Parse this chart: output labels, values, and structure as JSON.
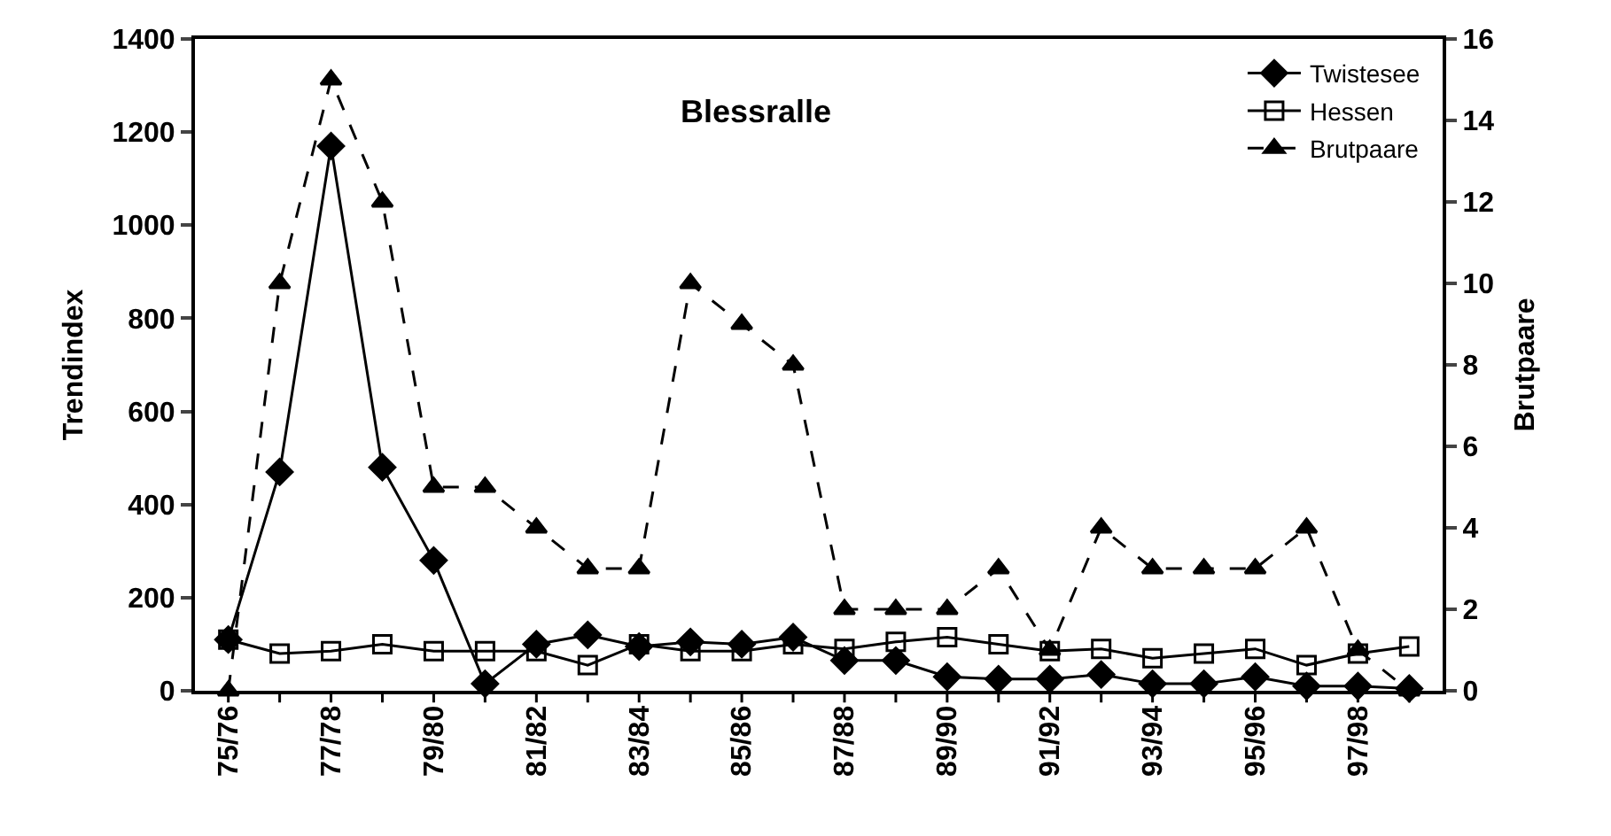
{
  "chart_data": {
    "type": "line",
    "title": "Blessralle",
    "ylabel": "Trendindex",
    "y2label": "Brutpaare",
    "categories": [
      "75/76",
      null,
      "77/78",
      null,
      "79/80",
      null,
      "81/82",
      null,
      "83/84",
      null,
      "85/86",
      null,
      "87/88",
      null,
      "89/90",
      null,
      "91/92",
      null,
      "93/94",
      null,
      "95/96",
      null,
      "97/98",
      null
    ],
    "series": [
      {
        "name": "Twistesee",
        "color": "#000000",
        "marker": "diamond",
        "line_style": "solid",
        "values": [
          110,
          470,
          1170,
          480,
          280,
          15,
          100,
          120,
          95,
          105,
          100,
          115,
          65,
          65,
          30,
          25,
          25,
          35,
          15,
          15,
          30,
          10,
          10,
          5
        ]
      },
      {
        "name": "Hessen",
        "color": "#000000",
        "marker": "square",
        "line_style": "solid",
        "values": [
          110,
          80,
          85,
          100,
          85,
          85,
          85,
          55,
          100,
          85,
          85,
          100,
          90,
          105,
          115,
          100,
          85,
          90,
          70,
          80,
          90,
          55,
          80,
          95
        ]
      },
      {
        "name": "Brutpaare",
        "color": "#000000",
        "marker": "triangle",
        "line_style": "dashed",
        "axis": "y2",
        "values": [
          0,
          10,
          15,
          12,
          5,
          5,
          4,
          3,
          3,
          10,
          9,
          8,
          2,
          2,
          2,
          3,
          1,
          4,
          3,
          3,
          3,
          4,
          1,
          0
        ]
      }
    ],
    "ylim": [
      0,
      1400
    ],
    "yticks": [
      0,
      200,
      400,
      600,
      800,
      1000,
      1200,
      1400
    ],
    "y2lim": [
      0,
      16
    ],
    "y2ticks": [
      0,
      2,
      4,
      6,
      8,
      10,
      12,
      14,
      16
    ],
    "grid": false,
    "legend": "top right"
  }
}
